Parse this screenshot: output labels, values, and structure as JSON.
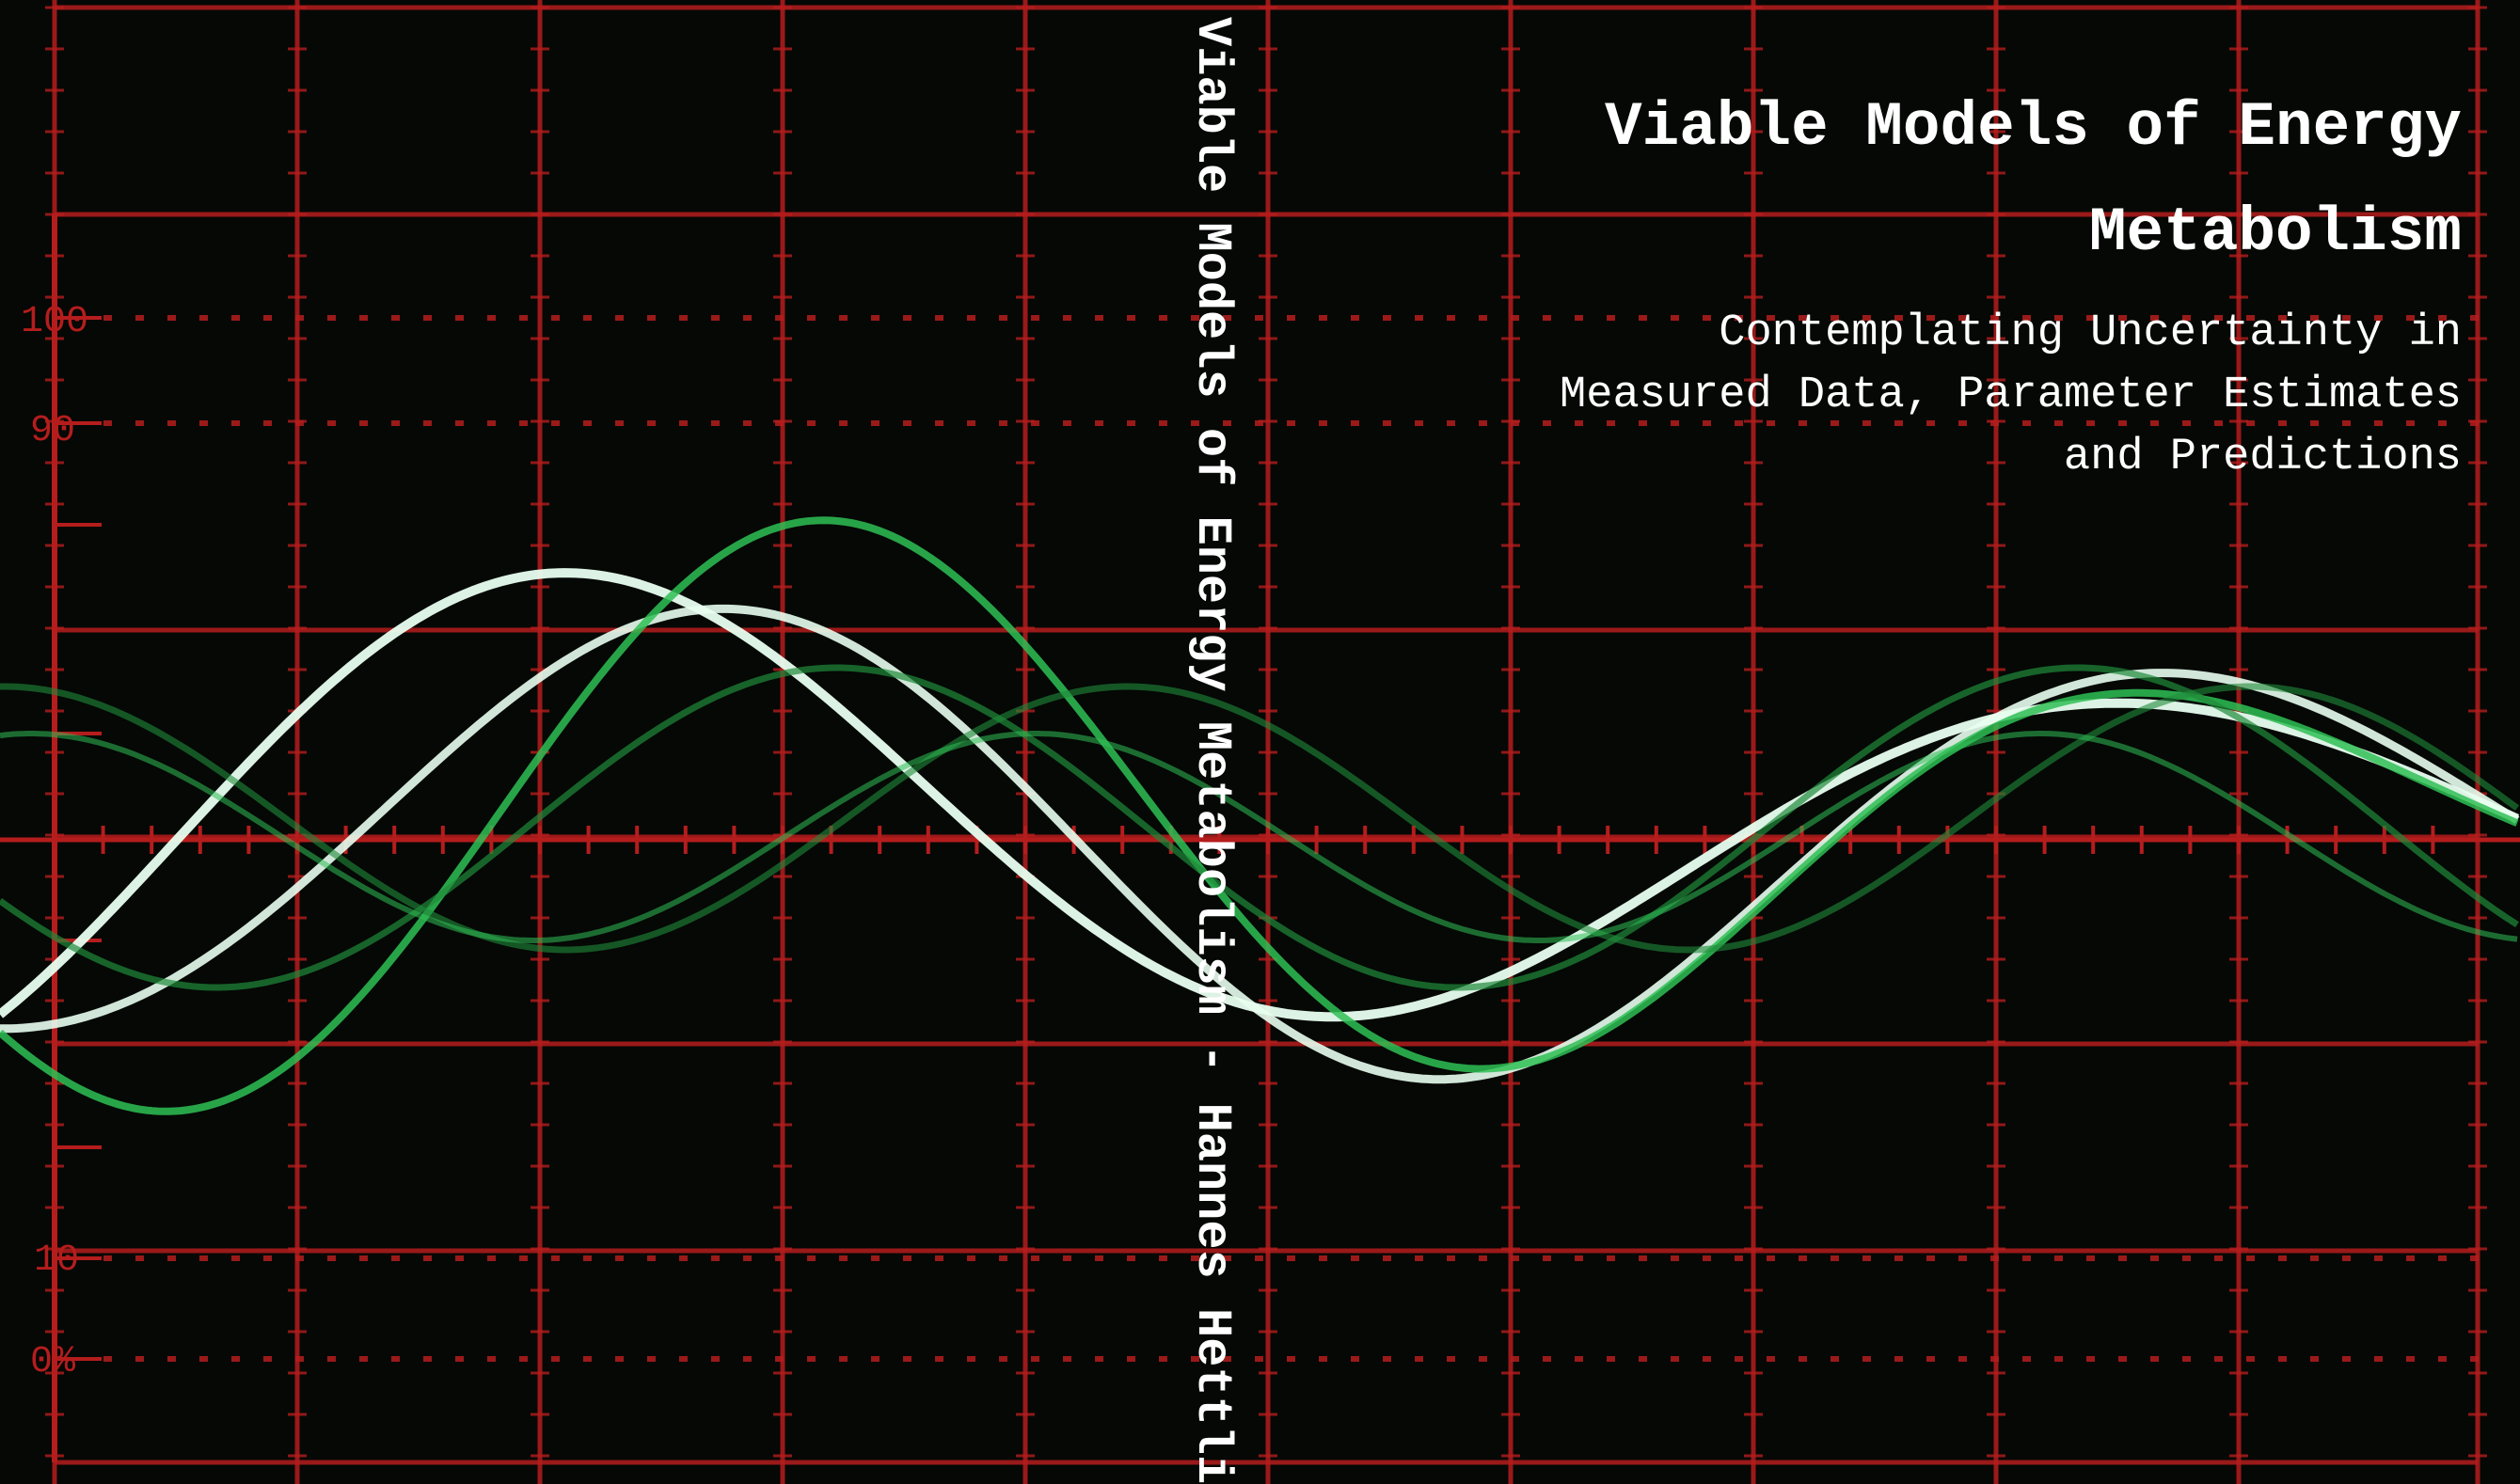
{
  "cover": {
    "spine_text": "Viable Models of Energy Metabolism - Hannes Hettling",
    "title": "Viable Models of Energy Metabolism",
    "subtitle": "Contemplating Uncertainty in Measured Data, Parameter Estimates and Predictions"
  },
  "scope_scale": {
    "labels": [
      "100",
      "90",
      "10",
      "0%"
    ]
  },
  "colors": {
    "grid": "#b51d1d",
    "trace_bright": "#e8fff0",
    "trace_green": "#2fbf55",
    "trace_dim": "#1f8a3a",
    "background": "#050805"
  }
}
